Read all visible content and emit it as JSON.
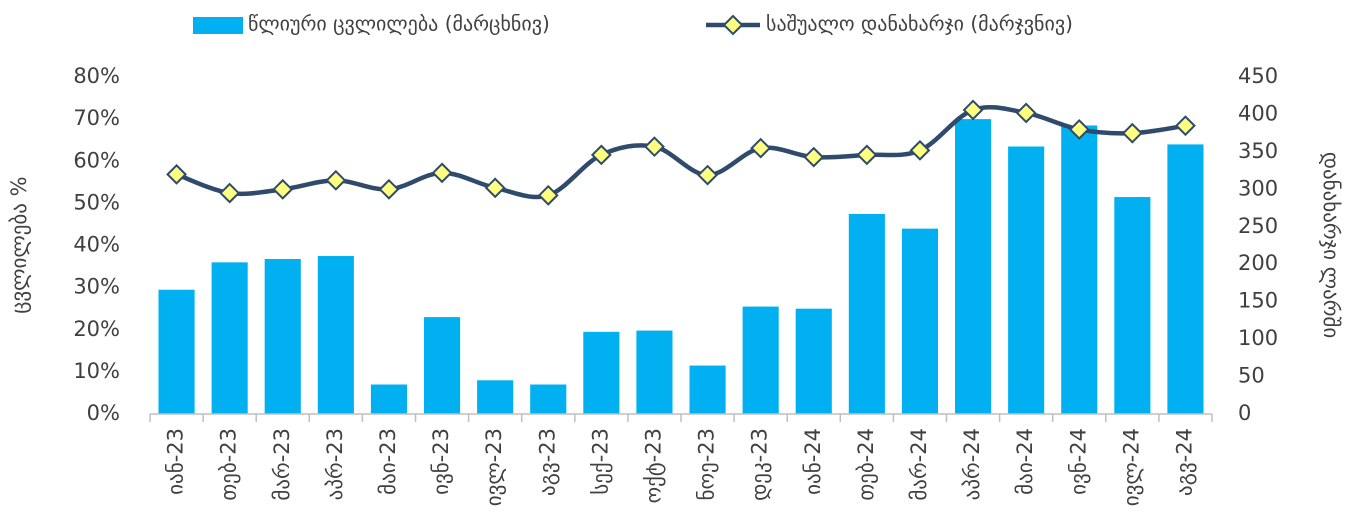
{
  "chart_data": {
    "type": "bar_line",
    "categories": [
      "იან-23",
      "თებ-23",
      "მარ-23",
      "აპრ-23",
      "მაი-23",
      "ივნ-23",
      "ივლ-23",
      "აგვ-23",
      "სექ-23",
      "ოქტ-23",
      "ნოე-23",
      "დეკ-23",
      "იან-24",
      "თებ-24",
      "მარ-24",
      "აპრ-24",
      "მაი-24",
      "ივნ-24",
      "ივლ-24",
      "აგვ-24"
    ],
    "series": [
      {
        "name": "წლიური ცვლილება (მარცხნივ)",
        "color": "#00b0f0",
        "type": "bar",
        "values": [
          29.5,
          36,
          36.8,
          37.5,
          7,
          23,
          8,
          7,
          19.5,
          19.8,
          11.5,
          25.5,
          25,
          47.5,
          44,
          70,
          63.5,
          68.5,
          51.5,
          64
        ]
      },
      {
        "name": "საშუალო დანახარჯი (მარჯვნივ)",
        "color": "#2f4a6b",
        "type": "line",
        "axis": "y2",
        "marker_color": "#ffff80",
        "values": [
          320,
          295,
          300,
          312,
          300,
          322,
          302,
          292,
          346,
          357,
          319,
          355,
          343,
          346,
          352,
          406,
          402,
          380,
          375,
          385
        ]
      }
    ],
    "ylabel": "ცვლილება %",
    "y2label": "დანახარჯი ლარში",
    "ylim": [
      0,
      80
    ],
    "yticks": [
      {
        "value": 0,
        "label": "0%"
      },
      {
        "value": 10,
        "label": "10%"
      },
      {
        "value": 20,
        "label": "20%"
      },
      {
        "value": 30,
        "label": "30%"
      },
      {
        "value": 40,
        "label": "40%"
      },
      {
        "value": 50,
        "label": "50%"
      },
      {
        "value": 60,
        "label": "60%"
      },
      {
        "value": 70,
        "label": "70%"
      },
      {
        "value": 80,
        "label": "80%"
      }
    ],
    "y2lim": [
      0,
      450
    ],
    "y2ticks": [
      0,
      50,
      100,
      150,
      200,
      250,
      300,
      350,
      400,
      450
    ],
    "legend": "top"
  }
}
